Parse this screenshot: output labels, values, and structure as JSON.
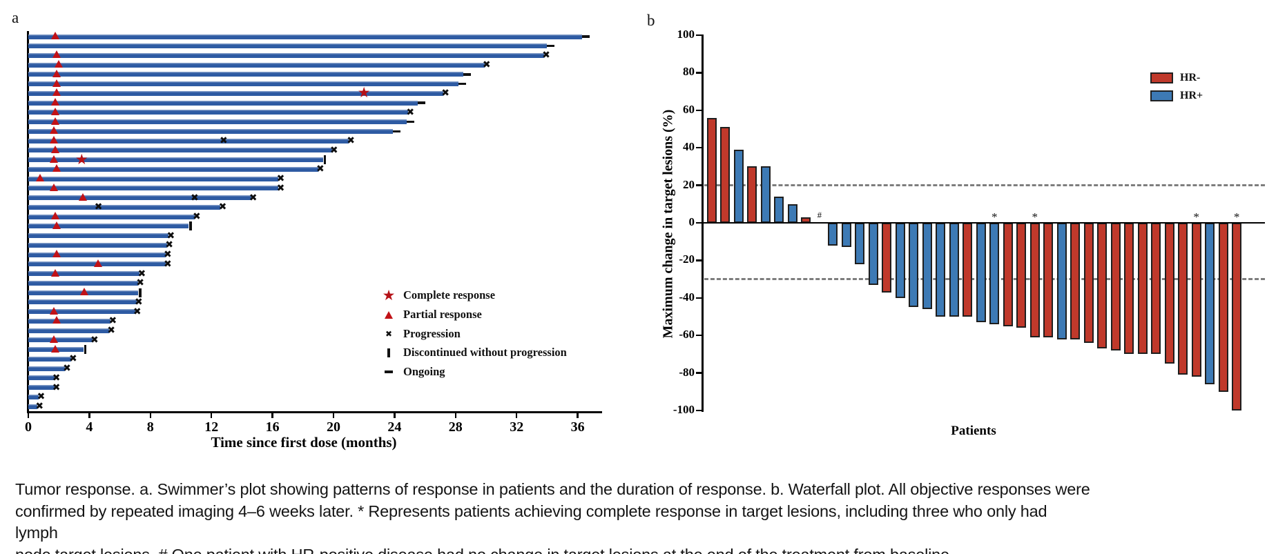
{
  "figure": {
    "panel_a_label": "a",
    "panel_b_label": "b",
    "caption_lines": [
      "Tumor response. a. Swimmer’s plot showing patterns of response in patients and the duration of response. b. Waterfall plot. All objective responses were",
      "confirmed by repeated imaging 4–6 weeks later. * Represents patients achieving complete response in target lesions, including three who only had lymph",
      "node target lesions. # One patient with HR-positive disease had no change in target lesions at the end of the treatment from baseline."
    ]
  },
  "chart_data": [
    {
      "type": "bar",
      "name": "swimmer-plot",
      "orientation": "horizontal",
      "xlabel": "Time since first dose (months)",
      "x_ticks": [
        0,
        4,
        8,
        12,
        16,
        20,
        24,
        28,
        32,
        36
      ],
      "xlim": [
        0,
        37.5
      ],
      "colors": {
        "bar": "#2e5ba3",
        "response_red": "#c11217",
        "event_black": "#0e0e0e"
      },
      "legend": [
        {
          "marker": "star",
          "label": "Complete response"
        },
        {
          "marker": "triangle",
          "label": "Partial response"
        },
        {
          "marker": "x",
          "label": "Progression"
        },
        {
          "marker": "bar",
          "label": "Discontinued without progression"
        },
        {
          "marker": "dash",
          "label": "Ongoing"
        }
      ],
      "patients": [
        {
          "duration": 36.3,
          "end": "ongoing",
          "pr": 1.8,
          "cr": null,
          "x_marks": []
        },
        {
          "duration": 34.0,
          "end": "ongoing",
          "pr": null,
          "cr": null,
          "x_marks": []
        },
        {
          "duration": 33.8,
          "end": "progression",
          "pr": 1.9,
          "cr": null,
          "x_marks": []
        },
        {
          "duration": 29.9,
          "end": "progression",
          "pr": 2.0,
          "cr": null,
          "x_marks": []
        },
        {
          "duration": 28.5,
          "end": "ongoing",
          "pr": 1.9,
          "cr": null,
          "x_marks": []
        },
        {
          "duration": 28.2,
          "end": "ongoing",
          "pr": 1.9,
          "cr": null,
          "x_marks": []
        },
        {
          "duration": 27.2,
          "end": "progression",
          "pr": 1.9,
          "cr": 22.0,
          "x_marks": []
        },
        {
          "duration": 25.5,
          "end": "ongoing",
          "pr": 1.8,
          "cr": null,
          "x_marks": []
        },
        {
          "duration": 24.9,
          "end": "progression",
          "pr": 1.8,
          "cr": null,
          "x_marks": []
        },
        {
          "duration": 24.8,
          "end": "ongoing",
          "pr": 1.8,
          "cr": null,
          "x_marks": []
        },
        {
          "duration": 23.9,
          "end": "ongoing",
          "pr": 1.7,
          "cr": null,
          "x_marks": []
        },
        {
          "duration": 21.0,
          "end": "progression",
          "pr": 1.7,
          "cr": null,
          "x_marks": [
            12.8
          ]
        },
        {
          "duration": 19.9,
          "end": "progression",
          "pr": 1.8,
          "cr": null,
          "x_marks": []
        },
        {
          "duration": 19.3,
          "end": "discontinued",
          "pr": 1.7,
          "cr": 3.5,
          "x_marks": []
        },
        {
          "duration": 19.0,
          "end": "progression",
          "pr": 1.9,
          "cr": null,
          "x_marks": []
        },
        {
          "duration": 16.4,
          "end": "progression",
          "pr": 0.8,
          "cr": null,
          "x_marks": []
        },
        {
          "duration": 16.4,
          "end": "progression",
          "pr": 1.7,
          "cr": null,
          "x_marks": []
        },
        {
          "duration": 14.6,
          "end": "progression",
          "pr": 3.6,
          "cr": null,
          "x_marks": [
            10.9
          ]
        },
        {
          "duration": 12.6,
          "end": "progression",
          "pr": null,
          "cr": null,
          "x_marks": [
            4.6
          ]
        },
        {
          "duration": 10.9,
          "end": "progression",
          "pr": 1.8,
          "cr": null,
          "x_marks": []
        },
        {
          "duration": 10.5,
          "end": "discontinued",
          "pr": 1.9,
          "cr": null,
          "x_marks": []
        },
        {
          "duration": 9.2,
          "end": "progression",
          "pr": null,
          "cr": null,
          "x_marks": []
        },
        {
          "duration": 9.1,
          "end": "progression",
          "pr": null,
          "cr": null,
          "x_marks": []
        },
        {
          "duration": 9.0,
          "end": "progression",
          "pr": 1.9,
          "cr": null,
          "x_marks": []
        },
        {
          "duration": 9.0,
          "end": "progression",
          "pr": 4.6,
          "cr": null,
          "x_marks": []
        },
        {
          "duration": 7.3,
          "end": "progression",
          "pr": 1.8,
          "cr": null,
          "x_marks": []
        },
        {
          "duration": 7.2,
          "end": "progression",
          "pr": null,
          "cr": null,
          "x_marks": []
        },
        {
          "duration": 7.2,
          "end": "discontinued",
          "pr": 3.7,
          "cr": null,
          "x_marks": []
        },
        {
          "duration": 7.1,
          "end": "progression",
          "pr": null,
          "cr": null,
          "x_marks": []
        },
        {
          "duration": 7.0,
          "end": "progression",
          "pr": 1.7,
          "cr": null,
          "x_marks": []
        },
        {
          "duration": 5.4,
          "end": "progression",
          "pr": 1.9,
          "cr": null,
          "x_marks": []
        },
        {
          "duration": 5.3,
          "end": "progression",
          "pr": null,
          "cr": null,
          "x_marks": []
        },
        {
          "duration": 4.2,
          "end": "progression",
          "pr": 1.7,
          "cr": null,
          "x_marks": []
        },
        {
          "duration": 3.6,
          "end": "discontinued",
          "pr": 1.8,
          "cr": null,
          "x_marks": []
        },
        {
          "duration": 2.8,
          "end": "progression",
          "pr": null,
          "cr": null,
          "x_marks": []
        },
        {
          "duration": 2.4,
          "end": "progression",
          "pr": null,
          "cr": null,
          "x_marks": []
        },
        {
          "duration": 1.7,
          "end": "progression",
          "pr": null,
          "cr": null,
          "x_marks": []
        },
        {
          "duration": 1.7,
          "end": "progression",
          "pr": null,
          "cr": null,
          "x_marks": []
        },
        {
          "duration": 0.7,
          "end": "progression",
          "pr": null,
          "cr": null,
          "x_marks": []
        },
        {
          "duration": 0.6,
          "end": "progression",
          "pr": null,
          "cr": null,
          "x_marks": []
        }
      ]
    },
    {
      "type": "bar",
      "name": "waterfall-plot",
      "ylabel": "Maximum change in target lesions (%)",
      "xlabel": "Patients",
      "y_ticks": [
        100,
        80,
        60,
        40,
        20,
        0,
        -20,
        -40,
        -60,
        -80,
        -100
      ],
      "ylim": [
        -100,
        100
      ],
      "reference_lines": [
        20,
        -30
      ],
      "colors": {
        "hr_neg": "#c0392b",
        "hr_pos": "#3d7ab5",
        "dashed": "#7d7d7d"
      },
      "legend": [
        {
          "label": "HR-",
          "color_key": "hr_neg"
        },
        {
          "label": "HR+",
          "color_key": "hr_pos"
        }
      ],
      "patients": [
        {
          "change": 56,
          "group": "HR-",
          "flag": null
        },
        {
          "change": 51,
          "group": "HR-",
          "flag": null
        },
        {
          "change": 39,
          "group": "HR+",
          "flag": null
        },
        {
          "change": 30,
          "group": "HR-",
          "flag": null
        },
        {
          "change": 30,
          "group": "HR+",
          "flag": null
        },
        {
          "change": 14,
          "group": "HR+",
          "flag": null
        },
        {
          "change": 10,
          "group": "HR+",
          "flag": null
        },
        {
          "change": 3,
          "group": "HR-",
          "flag": null
        },
        {
          "change": 0,
          "group": "HR+",
          "flag": "#"
        },
        {
          "change": -12,
          "group": "HR+",
          "flag": null
        },
        {
          "change": -13,
          "group": "HR+",
          "flag": null
        },
        {
          "change": -22,
          "group": "HR+",
          "flag": null
        },
        {
          "change": -33,
          "group": "HR+",
          "flag": null
        },
        {
          "change": -37,
          "group": "HR-",
          "flag": null
        },
        {
          "change": -40,
          "group": "HR+",
          "flag": null
        },
        {
          "change": -45,
          "group": "HR+",
          "flag": null
        },
        {
          "change": -46,
          "group": "HR+",
          "flag": null
        },
        {
          "change": -50,
          "group": "HR+",
          "flag": null
        },
        {
          "change": -50,
          "group": "HR+",
          "flag": null
        },
        {
          "change": -50,
          "group": "HR-",
          "flag": null
        },
        {
          "change": -53,
          "group": "HR+",
          "flag": null
        },
        {
          "change": -54,
          "group": "HR+",
          "flag": "*"
        },
        {
          "change": -55,
          "group": "HR-",
          "flag": null
        },
        {
          "change": -56,
          "group": "HR-",
          "flag": null
        },
        {
          "change": -61,
          "group": "HR-",
          "flag": "*"
        },
        {
          "change": -61,
          "group": "HR-",
          "flag": null
        },
        {
          "change": -62,
          "group": "HR+",
          "flag": null
        },
        {
          "change": -62,
          "group": "HR-",
          "flag": null
        },
        {
          "change": -64,
          "group": "HR-",
          "flag": null
        },
        {
          "change": -67,
          "group": "HR-",
          "flag": null
        },
        {
          "change": -68,
          "group": "HR-",
          "flag": null
        },
        {
          "change": -70,
          "group": "HR-",
          "flag": null
        },
        {
          "change": -70,
          "group": "HR-",
          "flag": null
        },
        {
          "change": -70,
          "group": "HR-",
          "flag": null
        },
        {
          "change": -75,
          "group": "HR-",
          "flag": null
        },
        {
          "change": -81,
          "group": "HR-",
          "flag": null
        },
        {
          "change": -82,
          "group": "HR-",
          "flag": "*"
        },
        {
          "change": -86,
          "group": "HR+",
          "flag": null
        },
        {
          "change": -90,
          "group": "HR-",
          "flag": null
        },
        {
          "change": -100,
          "group": "HR-",
          "flag": "*"
        }
      ]
    }
  ]
}
